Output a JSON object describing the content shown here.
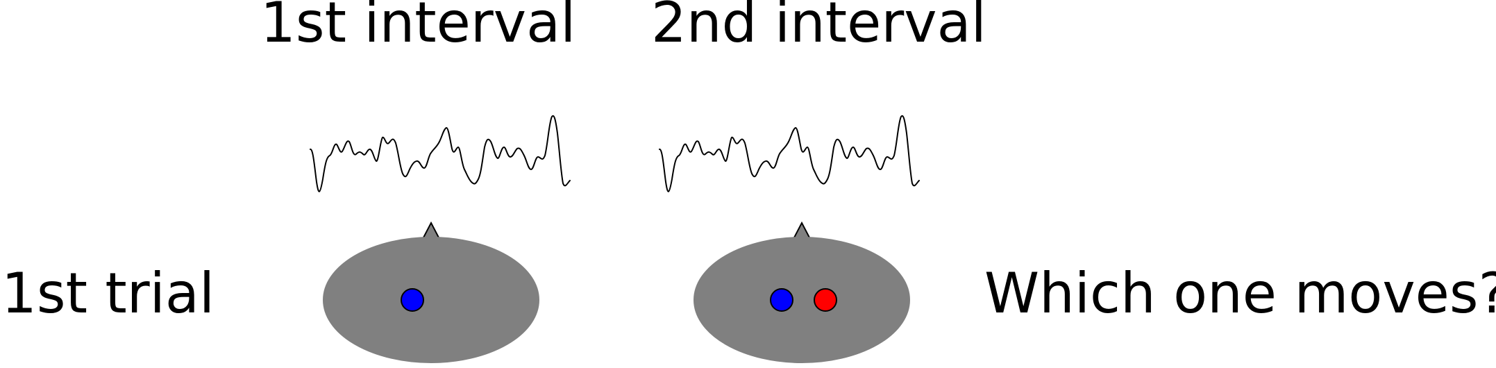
{
  "labels": {
    "interval_1": "1st interval",
    "interval_2": "2nd interval",
    "trial": "1st trial",
    "question": "Which one moves?"
  },
  "colors": {
    "head_fill": "#808080",
    "head_stroke": "#808080",
    "nose_fill": "#808080",
    "nose_stroke": "#000000",
    "waveform_stroke": "#000000",
    "dot_blue": "#0000ff",
    "dot_red": "#ff0000",
    "dot_stroke": "#000000"
  },
  "scenes": [
    {
      "id": "interval-1",
      "dots": [
        "blue"
      ]
    },
    {
      "id": "interval-2",
      "dots": [
        "blue",
        "red"
      ]
    }
  ]
}
